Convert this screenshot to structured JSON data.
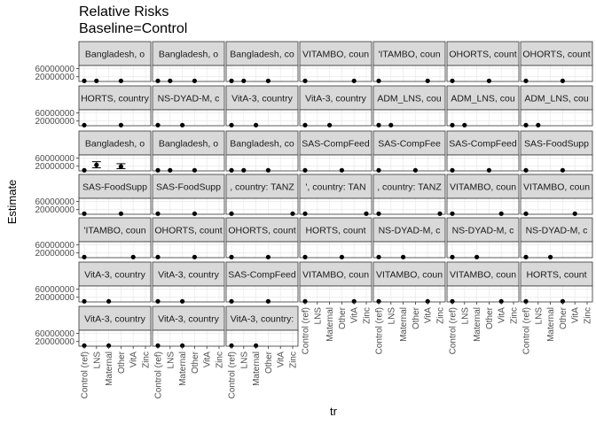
{
  "title": "Relative Risks",
  "subtitle": "Baseline=Control",
  "chart_data": {
    "type": "scatter",
    "title": "Relative Risks",
    "subtitle": "Baseline=Control",
    "xlabel": "tr",
    "ylabel": "Estimate",
    "categories": [
      "Control (ref)",
      "LNS",
      "Maternal",
      "Other",
      "VitA",
      "Zinc"
    ],
    "y_ticks": [
      20000000,
      60000000
    ],
    "ylim": [
      -3000000,
      75000000
    ],
    "grid": true,
    "facet_cols": 7,
    "panels": [
      {
        "strip": "Bangladesh, o",
        "points": [
          {
            "x": "Control (ref)",
            "y": 1
          },
          {
            "x": "LNS",
            "y": 1
          },
          {
            "x": "Other",
            "y": 1
          }
        ]
      },
      {
        "strip": "Bangladesh, o",
        "points": [
          {
            "x": "Control (ref)",
            "y": 1
          },
          {
            "x": "LNS",
            "y": 1
          },
          {
            "x": "Other",
            "y": 1
          }
        ]
      },
      {
        "strip": "Bangladesh, co",
        "points": [
          {
            "x": "Control (ref)",
            "y": 1
          },
          {
            "x": "LNS",
            "y": 1
          },
          {
            "x": "Other",
            "y": 1
          }
        ]
      },
      {
        "strip": "VITAMBO, coun",
        "points": [
          {
            "x": "Control (ref)",
            "y": 1
          },
          {
            "x": "VitA",
            "y": 1
          }
        ]
      },
      {
        "strip": "'ITAMBO, coun",
        "points": [
          {
            "x": "Control (ref)",
            "y": 1
          },
          {
            "x": "VitA",
            "y": 1
          }
        ]
      },
      {
        "strip": "OHORTS, count",
        "points": [
          {
            "x": "Control (ref)",
            "y": 1
          },
          {
            "x": "Other",
            "y": 1
          }
        ]
      },
      {
        "strip": "OHORTS, count",
        "points": [
          {
            "x": "Control (ref)",
            "y": 1
          },
          {
            "x": "Other",
            "y": 1
          }
        ]
      },
      {
        "strip": "HORTS, country",
        "points": [
          {
            "x": "Control (ref)",
            "y": 1
          },
          {
            "x": "Other",
            "y": 1
          }
        ]
      },
      {
        "strip": "NS-DYAD-M, c",
        "points": [
          {
            "x": "Control (ref)",
            "y": 1
          },
          {
            "x": "Maternal",
            "y": 1
          }
        ]
      },
      {
        "strip": "VitA-3, country",
        "points": [
          {
            "x": "Control (ref)",
            "y": 1
          },
          {
            "x": "Maternal",
            "y": 1
          }
        ]
      },
      {
        "strip": "VitA-3, country",
        "points": [
          {
            "x": "Control (ref)",
            "y": 1
          },
          {
            "x": "Maternal",
            "y": 1
          }
        ]
      },
      {
        "strip": "ADM_LNS, cou",
        "points": [
          {
            "x": "Control (ref)",
            "y": 1
          },
          {
            "x": "LNS",
            "y": 1
          }
        ]
      },
      {
        "strip": "ADM_LNS, cou",
        "points": [
          {
            "x": "Control (ref)",
            "y": 1
          },
          {
            "x": "LNS",
            "y": 1
          }
        ]
      },
      {
        "strip": "ADM_LNS, cou",
        "points": [
          {
            "x": "Control (ref)",
            "y": 1
          },
          {
            "x": "LNS",
            "y": 1
          }
        ]
      },
      {
        "strip": "Bangladesh, o",
        "points": [
          {
            "x": "Control (ref)",
            "y": 1
          },
          {
            "x": "LNS",
            "y": 26000000,
            "lo": 12000000,
            "hi": 42000000
          },
          {
            "x": "Other",
            "y": 18000000,
            "lo": 8000000,
            "hi": 32000000
          }
        ]
      },
      {
        "strip": "Bangladesh, o",
        "points": [
          {
            "x": "Control (ref)",
            "y": 1
          },
          {
            "x": "LNS",
            "y": 1
          },
          {
            "x": "Other",
            "y": 1
          }
        ]
      },
      {
        "strip": "Bangladesh, co",
        "points": [
          {
            "x": "Control (ref)",
            "y": 1
          },
          {
            "x": "LNS",
            "y": 1
          },
          {
            "x": "Other",
            "y": 1
          }
        ]
      },
      {
        "strip": "SAS-CompFeed",
        "points": [
          {
            "x": "Control (ref)",
            "y": 1
          },
          {
            "x": "Other",
            "y": 1
          }
        ]
      },
      {
        "strip": "SAS-CompFee",
        "points": [
          {
            "x": "Control (ref)",
            "y": 1
          },
          {
            "x": "Other",
            "y": 1
          }
        ]
      },
      {
        "strip": "SAS-CompFeed",
        "points": [
          {
            "x": "Control (ref)",
            "y": 1
          },
          {
            "x": "Other",
            "y": 1
          }
        ]
      },
      {
        "strip": "SAS-FoodSupp",
        "points": [
          {
            "x": "Control (ref)",
            "y": 1
          },
          {
            "x": "Other",
            "y": 1
          }
        ]
      },
      {
        "strip": "SAS-FoodSupp",
        "points": [
          {
            "x": "Control (ref)",
            "y": 1
          },
          {
            "x": "Other",
            "y": 1
          }
        ]
      },
      {
        "strip": "SAS-FoodSupp",
        "points": [
          {
            "x": "Control (ref)",
            "y": 1
          },
          {
            "x": "Other",
            "y": 1
          }
        ]
      },
      {
        "strip": ", country: TANZ",
        "points": [
          {
            "x": "Control (ref)",
            "y": 1
          },
          {
            "x": "Zinc",
            "y": 1
          }
        ]
      },
      {
        "strip": "', country: TAN",
        "points": [
          {
            "x": "Control (ref)",
            "y": 1
          },
          {
            "x": "Zinc",
            "y": 1
          }
        ]
      },
      {
        "strip": ", country: TANZ",
        "points": [
          {
            "x": "Control (ref)",
            "y": 1
          },
          {
            "x": "Zinc",
            "y": 1
          }
        ]
      },
      {
        "strip": "VITAMBO, coun",
        "points": [
          {
            "x": "Control (ref)",
            "y": 1
          },
          {
            "x": "VitA",
            "y": 1
          }
        ]
      },
      {
        "strip": "VITAMBO, coun",
        "points": [
          {
            "x": "Control (ref)",
            "y": 1
          },
          {
            "x": "VitA",
            "y": 1
          }
        ]
      },
      {
        "strip": "'ITAMBO, coun",
        "points": [
          {
            "x": "Control (ref)",
            "y": 1
          },
          {
            "x": "VitA",
            "y": 1
          }
        ]
      },
      {
        "strip": "OHORTS, count",
        "points": [
          {
            "x": "Control (ref)",
            "y": 1
          },
          {
            "x": "Other",
            "y": 1
          }
        ]
      },
      {
        "strip": "OHORTS, count",
        "points": [
          {
            "x": "Control (ref)",
            "y": 1
          },
          {
            "x": "Other",
            "y": 1
          }
        ]
      },
      {
        "strip": "HORTS, count",
        "points": [
          {
            "x": "Control (ref)",
            "y": 1
          },
          {
            "x": "Other",
            "y": 1
          }
        ]
      },
      {
        "strip": "NS-DYAD-M, c",
        "points": [
          {
            "x": "Control (ref)",
            "y": 1
          },
          {
            "x": "Maternal",
            "y": 1
          }
        ]
      },
      {
        "strip": "NS-DYAD-M, c",
        "points": [
          {
            "x": "Control (ref)",
            "y": 1
          },
          {
            "x": "Maternal",
            "y": 1
          }
        ]
      },
      {
        "strip": "NS-DYAD-M, c",
        "points": [
          {
            "x": "Control (ref)",
            "y": 1
          },
          {
            "x": "Maternal",
            "y": 1
          }
        ]
      },
      {
        "strip": "VitA-3, country",
        "points": [
          {
            "x": "Control (ref)",
            "y": 1
          },
          {
            "x": "Maternal",
            "y": 1
          }
        ]
      },
      {
        "strip": "VitA-3, country",
        "points": [
          {
            "x": "Control (ref)",
            "y": 1
          },
          {
            "x": "Maternal",
            "y": 1
          }
        ]
      },
      {
        "strip": "SAS-CompFeed",
        "points": [
          {
            "x": "Control (ref)",
            "y": 1
          },
          {
            "x": "Other",
            "y": 1
          }
        ]
      },
      {
        "strip": "VITAMBO, coun",
        "points": [
          {
            "x": "Control (ref)",
            "y": 1
          },
          {
            "x": "VitA",
            "y": 1
          }
        ]
      },
      {
        "strip": "VITAMBO, coun",
        "points": [
          {
            "x": "Control (ref)",
            "y": 1
          },
          {
            "x": "VitA",
            "y": 1
          }
        ]
      },
      {
        "strip": "VITAMBO, coun",
        "points": [
          {
            "x": "Control (ref)",
            "y": 1
          },
          {
            "x": "VitA",
            "y": 1
          }
        ]
      },
      {
        "strip": "HORTS, count",
        "points": [
          {
            "x": "Control (ref)",
            "y": 1
          },
          {
            "x": "Other",
            "y": 1
          }
        ]
      },
      {
        "strip": "VitA-3, country",
        "points": [
          {
            "x": "Control (ref)",
            "y": 1
          },
          {
            "x": "Maternal",
            "y": 1
          }
        ]
      },
      {
        "strip": "VitA-3, country",
        "points": [
          {
            "x": "Control (ref)",
            "y": 1
          },
          {
            "x": "Maternal",
            "y": 1
          }
        ]
      },
      {
        "strip": "VitA-3, country:",
        "points": [
          {
            "x": "Control (ref)",
            "y": 1
          },
          {
            "x": "Maternal",
            "y": 1
          }
        ]
      }
    ]
  },
  "colors": {
    "strip_fill": "#d9d9d9",
    "panel_border": "#333333",
    "grid": "#ebebeb",
    "point": "#000000",
    "axis_text": "#4d4d4d"
  }
}
